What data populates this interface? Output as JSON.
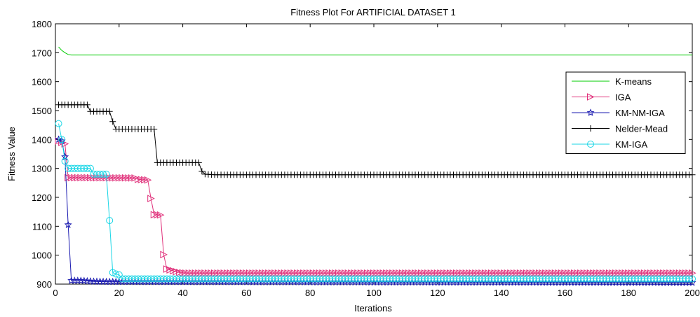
{
  "chart_data": {
    "type": "line",
    "title": "Fitness Plot For ARTIFICIAL DATASET 1",
    "xlabel": "Iterations",
    "ylabel": "Fitness Value",
    "xlim": [
      0,
      200
    ],
    "ylim": [
      900,
      1800
    ],
    "xticks": [
      0,
      20,
      40,
      60,
      80,
      100,
      120,
      140,
      160,
      180,
      200
    ],
    "yticks": [
      900,
      1000,
      1100,
      1200,
      1300,
      1400,
      1500,
      1600,
      1700,
      1800
    ],
    "xtick_labels": [
      "0",
      "20",
      "40",
      "60",
      "80",
      "100",
      "120",
      "140",
      "160",
      "180",
      "200"
    ],
    "ytick_labels": [
      "900",
      "1000",
      "1100",
      "1200",
      "1300",
      "1400",
      "1500",
      "1600",
      "1700",
      "1800"
    ],
    "grid": false,
    "legend_position": "right",
    "series": [
      {
        "name": "K-means",
        "color": "#00cc00",
        "marker": "none",
        "points": [
          [
            1,
            1720
          ],
          [
            2,
            1708
          ],
          [
            3,
            1700
          ],
          [
            4,
            1694
          ],
          [
            5,
            1692
          ],
          [
            200,
            1692
          ]
        ]
      },
      {
        "name": "IGA",
        "color": "#e0307a",
        "marker": "triangle-right",
        "points": [
          [
            1,
            1395
          ],
          [
            2,
            1390
          ],
          [
            3,
            1385
          ],
          [
            4,
            1268
          ],
          [
            6,
            1268
          ],
          [
            25,
            1267
          ],
          [
            26,
            1262
          ],
          [
            29,
            1260
          ],
          [
            30,
            1196
          ],
          [
            31,
            1140
          ],
          [
            33,
            1139
          ],
          [
            34,
            1002
          ],
          [
            35,
            952
          ],
          [
            37,
            946
          ],
          [
            39,
            940
          ],
          [
            41,
            938
          ],
          [
            200,
            938
          ]
        ]
      },
      {
        "name": "KM-NM-IGA",
        "color": "#1a1ab0",
        "marker": "star",
        "points": [
          [
            1,
            1400
          ],
          [
            2,
            1395
          ],
          [
            3,
            1340
          ],
          [
            4,
            1105
          ],
          [
            5,
            912
          ],
          [
            8,
            912
          ],
          [
            12,
            909
          ],
          [
            17,
            908
          ],
          [
            200,
            905
          ]
        ]
      },
      {
        "name": "Nelder-Mead",
        "color": "#000000",
        "marker": "plus",
        "points": [
          [
            1,
            1520
          ],
          [
            10,
            1520
          ],
          [
            11,
            1497
          ],
          [
            17,
            1497
          ],
          [
            18,
            1462
          ],
          [
            19,
            1436
          ],
          [
            31,
            1436
          ],
          [
            32,
            1320
          ],
          [
            45,
            1320
          ],
          [
            46,
            1290
          ],
          [
            47,
            1280
          ],
          [
            50,
            1278
          ],
          [
            200,
            1278
          ]
        ]
      },
      {
        "name": "KM-IGA",
        "color": "#19d6e6",
        "marker": "circle",
        "points": [
          [
            1,
            1455
          ],
          [
            2,
            1400
          ],
          [
            3,
            1325
          ],
          [
            4,
            1300
          ],
          [
            11,
            1300
          ],
          [
            12,
            1280
          ],
          [
            16,
            1280
          ],
          [
            17,
            1120
          ],
          [
            18,
            940
          ],
          [
            19,
            935
          ],
          [
            20,
            932
          ],
          [
            21,
            918
          ],
          [
            200,
            918
          ]
        ]
      }
    ]
  }
}
